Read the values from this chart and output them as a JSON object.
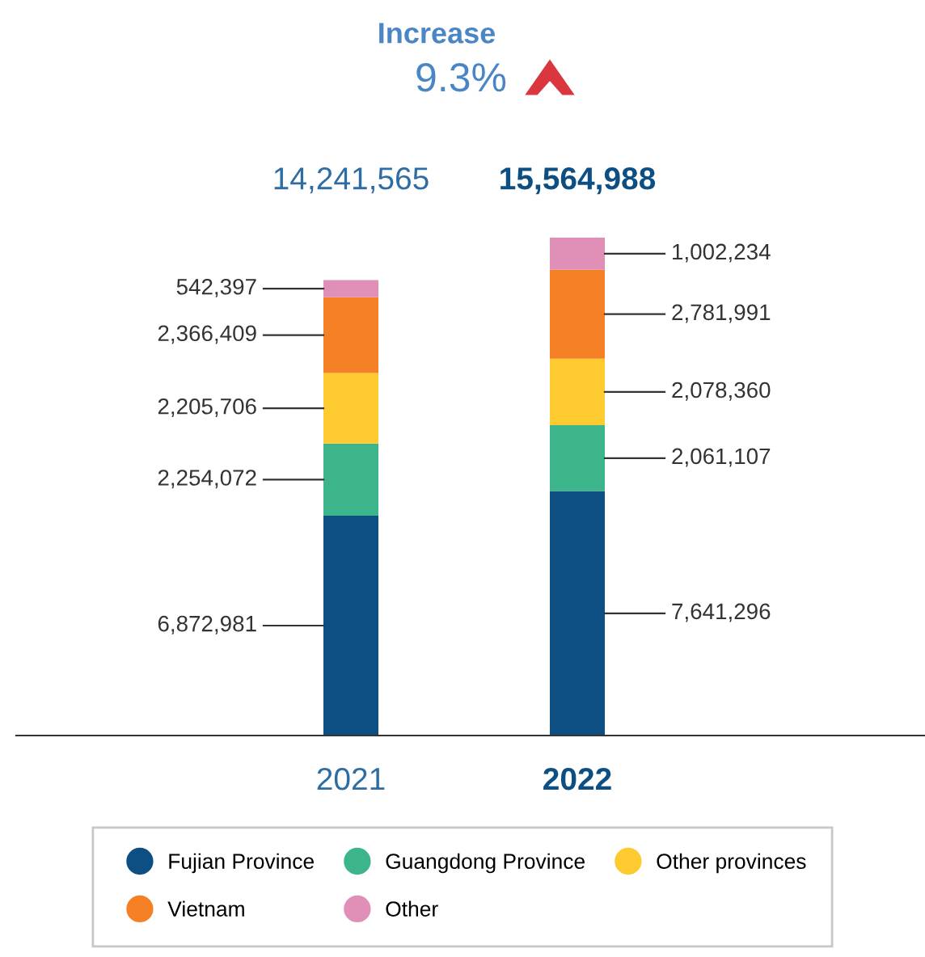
{
  "chart_data": {
    "type": "bar",
    "stacked": true,
    "categories": [
      "2021",
      "2022"
    ],
    "series": [
      {
        "name": "Fujian Province",
        "color": "#0d4f82",
        "values": [
          6872981,
          7641296
        ],
        "value_labels": [
          "6,872,981",
          "7,641,296"
        ]
      },
      {
        "name": "Guangdong Province",
        "color": "#3db58a",
        "values": [
          2254072,
          2061107
        ],
        "value_labels": [
          "2,254,072",
          "2,061,107"
        ]
      },
      {
        "name": "Other provinces",
        "color": "#fdcb2f",
        "values": [
          2205706,
          2078360
        ],
        "value_labels": [
          "2,205,706",
          "2,078,360"
        ]
      },
      {
        "name": "Vietnam",
        "color": "#f58025",
        "values": [
          2366409,
          2781991
        ],
        "value_labels": [
          "2,366,409",
          "2,781,991"
        ]
      },
      {
        "name": "Other",
        "color": "#e08fb6",
        "values": [
          542397,
          1002234
        ],
        "value_labels": [
          "542,397",
          "1,002,234"
        ]
      }
    ],
    "totals": [
      "14,241,565",
      "15,564,988"
    ],
    "annotations": [
      "Increase",
      "9.3%"
    ],
    "legend": "bottom",
    "marker": "circle"
  }
}
